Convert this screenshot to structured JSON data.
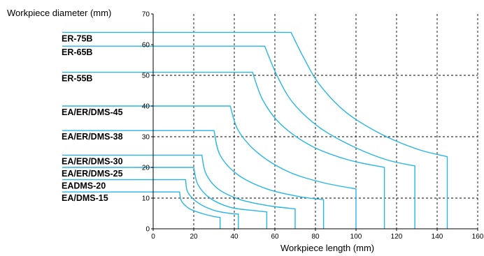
{
  "chart_data": {
    "type": "line",
    "ylabel": "Workpiece diameter (mm)",
    "xlabel": "Workpiece length (mm)",
    "xlim": [
      0,
      160
    ],
    "ylim": [
      0,
      70
    ],
    "x_ticks": [
      "0",
      "20",
      "40",
      "60",
      "80",
      "100",
      "120",
      "140",
      "160"
    ],
    "y_ticks": [
      "0",
      "10",
      "20",
      "30",
      "40",
      "50",
      "60",
      "70"
    ],
    "grid": "dashed vertical lines every 20 mm; dashed horizontal lines at 10, 30 and 50 mm",
    "line_color": "#29b5e6",
    "series": [
      {
        "name": "ER-75B",
        "x": [
          0,
          68,
          74,
          82,
          95,
          112,
          130,
          145,
          145
        ],
        "y": [
          64,
          64,
          56,
          47,
          38,
          31,
          26,
          23.5,
          0
        ]
      },
      {
        "name": "ER-65B",
        "x": [
          0,
          55,
          61,
          69,
          82,
          98,
          115,
          129,
          129
        ],
        "y": [
          59.5,
          59.5,
          50,
          41,
          33,
          27,
          22.5,
          20.5,
          0
        ]
      },
      {
        "name": "ER-55B",
        "x": [
          0,
          49,
          54,
          63,
          78,
          96,
          114,
          114
        ],
        "y": [
          51,
          51,
          42,
          34,
          27,
          22.5,
          20,
          0
        ]
      },
      {
        "name": "EA/ER/DMS-45",
        "x": [
          0,
          38,
          42,
          52,
          67,
          84,
          100,
          100
        ],
        "y": [
          40,
          40,
          32,
          24.5,
          18.5,
          15,
          13,
          0
        ]
      },
      {
        "name": "EA/ER/DMS-38",
        "x": [
          0,
          30,
          33,
          42,
          56,
          72,
          84,
          84
        ],
        "y": [
          32,
          32,
          24,
          17.5,
          13,
          10.5,
          9.5,
          0
        ]
      },
      {
        "name": "EA/ER/DMS-30",
        "x": [
          0,
          24,
          26,
          32,
          43,
          57,
          70,
          70
        ],
        "y": [
          24,
          24,
          18,
          13,
          9.5,
          7.5,
          6.5,
          0
        ]
      },
      {
        "name": "EA/ER/DMS-25",
        "x": [
          0,
          20,
          22,
          28,
          38,
          49,
          56,
          56
        ],
        "y": [
          20,
          20,
          14.5,
          10,
          7,
          6,
          5.5,
          0
        ]
      },
      {
        "name": "EADMS-20",
        "x": [
          0,
          16,
          17,
          22,
          30,
          38,
          42,
          42
        ],
        "y": [
          16,
          16,
          12,
          8.5,
          6,
          5,
          4.8,
          0
        ]
      },
      {
        "name": "EA/DMS-15",
        "x": [
          0,
          13,
          14,
          18,
          24,
          30,
          33,
          33
        ],
        "y": [
          12,
          12,
          9,
          6.5,
          5,
          4,
          3.7,
          0
        ]
      }
    ]
  }
}
